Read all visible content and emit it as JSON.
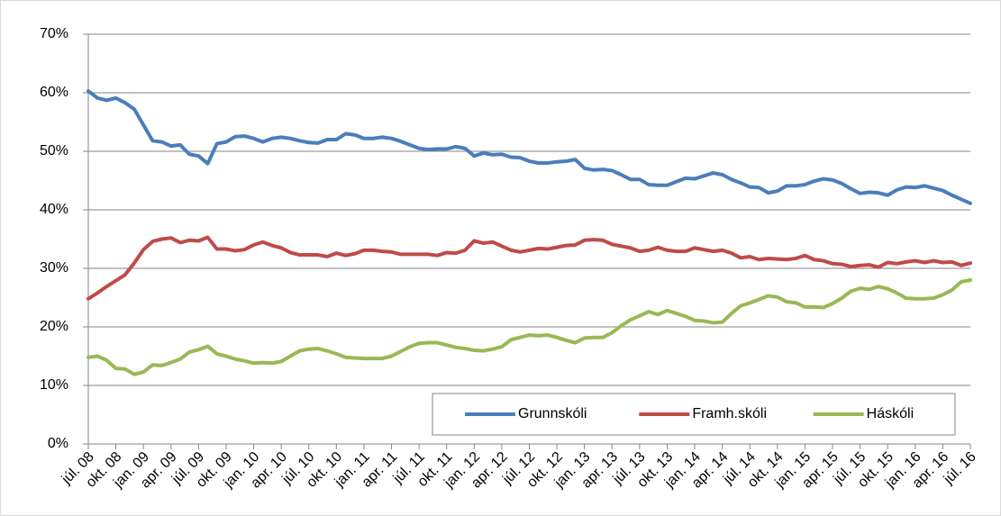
{
  "chart_data": {
    "type": "line",
    "categories": [
      "júl. 08",
      null,
      null,
      "okt. 08",
      null,
      null,
      "jan. 09",
      null,
      null,
      "apr. 09",
      null,
      null,
      "júl. 09",
      null,
      null,
      "okt. 09",
      null,
      null,
      "jan. 10",
      null,
      null,
      "apr. 10",
      null,
      null,
      "júl. 10",
      null,
      null,
      "okt. 10",
      null,
      null,
      "jan. 11",
      null,
      null,
      "apr. 11",
      null,
      null,
      "júl. 11",
      null,
      null,
      "okt. 11",
      null,
      null,
      "jan. 12",
      null,
      null,
      "apr. 12",
      null,
      null,
      "júl. 12",
      null,
      null,
      "okt. 12",
      null,
      null,
      "jan. 13",
      null,
      null,
      "apr. 13",
      null,
      null,
      "júl. 13",
      null,
      null,
      "okt. 13",
      null,
      null,
      "jan. 14",
      null,
      null,
      "apr. 14",
      null,
      null,
      "júl. 14",
      null,
      null,
      "okt. 14",
      null,
      null,
      "jan. 15",
      null,
      null,
      "apr. 15",
      null,
      null,
      "júl. 15",
      null,
      null,
      "okt. 15",
      null,
      null,
      "jan. 16",
      null,
      null,
      "apr. 16",
      null,
      null,
      "júl. 16"
    ],
    "series": [
      {
        "name": "Grunnskóli",
        "color": "#4a7ebb",
        "values": [
          60.3,
          59.1,
          58.7,
          59.1,
          58.3,
          57.2,
          54.5,
          51.8,
          51.6,
          50.9,
          51.1,
          49.5,
          49.2,
          47.9,
          51.3,
          51.6,
          52.5,
          52.6,
          52.2,
          51.6,
          52.2,
          52.4,
          52.2,
          51.8,
          51.5,
          51.4,
          52.0,
          52.0,
          53.0,
          52.8,
          52.2,
          52.2,
          52.4,
          52.2,
          51.7,
          51.1,
          50.5,
          50.3,
          50.4,
          50.4,
          50.8,
          50.5,
          49.2,
          49.7,
          49.4,
          49.5,
          49.0,
          48.9,
          48.3,
          48.0,
          48.0,
          48.2,
          48.3,
          48.6,
          47.1,
          46.8,
          46.9,
          46.7,
          46.0,
          45.2,
          45.2,
          44.3,
          44.2,
          44.2,
          44.8,
          45.4,
          45.3,
          45.8,
          46.3,
          46.0,
          45.2,
          44.6,
          43.9,
          43.8,
          42.9,
          43.2,
          44.1,
          44.1,
          44.3,
          44.9,
          45.3,
          45.1,
          44.5,
          43.6,
          42.8,
          43.0,
          42.9,
          42.5,
          43.4,
          43.9,
          43.8,
          44.1,
          43.7,
          43.3,
          42.5,
          41.8,
          41.1
        ]
      },
      {
        "name": "Framh.skóli",
        "color": "#be4b48",
        "values": [
          24.8,
          25.8,
          26.9,
          27.9,
          28.9,
          30.9,
          33.2,
          34.6,
          35.0,
          35.2,
          34.4,
          34.8,
          34.7,
          35.3,
          33.3,
          33.3,
          33.0,
          33.2,
          34.0,
          34.5,
          33.9,
          33.5,
          32.7,
          32.3,
          32.3,
          32.3,
          32.0,
          32.6,
          32.2,
          32.5,
          33.1,
          33.1,
          32.9,
          32.8,
          32.4,
          32.4,
          32.4,
          32.4,
          32.2,
          32.7,
          32.6,
          33.1,
          34.7,
          34.3,
          34.5,
          33.8,
          33.1,
          32.8,
          33.1,
          33.4,
          33.3,
          33.6,
          33.9,
          34.0,
          34.8,
          34.9,
          34.8,
          34.1,
          33.8,
          33.5,
          32.9,
          33.1,
          33.6,
          33.1,
          32.9,
          32.9,
          33.5,
          33.2,
          32.9,
          33.1,
          32.6,
          31.8,
          32.0,
          31.5,
          31.7,
          31.6,
          31.5,
          31.7,
          32.2,
          31.5,
          31.3,
          30.8,
          30.7,
          30.3,
          30.5,
          30.6,
          30.2,
          31.0,
          30.8,
          31.1,
          31.3,
          31.0,
          31.3,
          31.0,
          31.1,
          30.5,
          30.9
        ]
      },
      {
        "name": "Háskóli",
        "color": "#98b954",
        "values": [
          14.8,
          15.0,
          14.3,
          12.9,
          12.8,
          11.9,
          12.3,
          13.5,
          13.4,
          13.9,
          14.5,
          15.7,
          16.1,
          16.7,
          15.4,
          15.0,
          14.5,
          14.2,
          13.8,
          13.9,
          13.8,
          14.1,
          15.0,
          15.9,
          16.2,
          16.3,
          15.9,
          15.4,
          14.8,
          14.7,
          14.6,
          14.6,
          14.6,
          15.0,
          15.8,
          16.6,
          17.2,
          17.3,
          17.3,
          16.9,
          16.5,
          16.3,
          16.0,
          15.9,
          16.2,
          16.6,
          17.8,
          18.2,
          18.6,
          18.5,
          18.6,
          18.2,
          17.7,
          17.3,
          18.1,
          18.2,
          18.2,
          19.0,
          20.2,
          21.2,
          21.9,
          22.6,
          22.1,
          22.8,
          22.3,
          21.8,
          21.1,
          21.0,
          20.7,
          20.8,
          22.3,
          23.6,
          24.1,
          24.7,
          25.3,
          25.1,
          24.3,
          24.1,
          23.4,
          23.4,
          23.3,
          24.0,
          24.9,
          26.1,
          26.6,
          26.4,
          26.9,
          26.5,
          25.8,
          24.9,
          24.8,
          24.8,
          24.9,
          25.5,
          26.3,
          27.7,
          28.0
        ]
      }
    ],
    "ylim": [
      0,
      70
    ],
    "yticks": [
      {
        "value": 0,
        "label": "0%"
      },
      {
        "value": 10,
        "label": "10%"
      },
      {
        "value": 20,
        "label": "20%"
      },
      {
        "value": 30,
        "label": "30%"
      },
      {
        "value": 40,
        "label": "40%"
      },
      {
        "value": 50,
        "label": "50%"
      },
      {
        "value": 60,
        "label": "60%"
      },
      {
        "value": 70,
        "label": "70%"
      }
    ],
    "grid": true,
    "legend": "lower right"
  }
}
